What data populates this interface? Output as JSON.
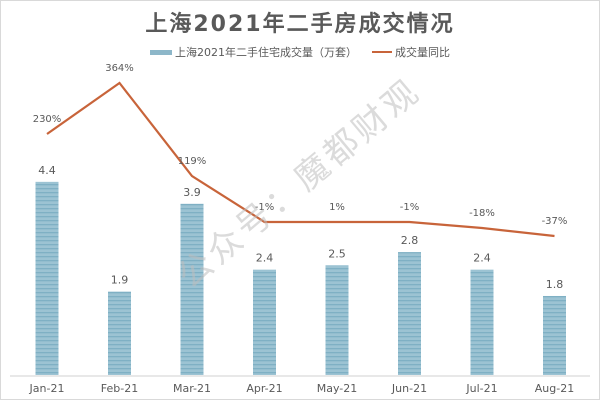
{
  "chart_data": {
    "type": "bar+line",
    "title": "上海2021年二手房成交情况",
    "categories": [
      "Jan-21",
      "Feb-21",
      "Mar-21",
      "Apr-21",
      "May-21",
      "Jun-21",
      "Jul-21",
      "Aug-21"
    ],
    "series": [
      {
        "name": "上海2021年二手住宅成交量（万套）",
        "type": "bar",
        "color": "#8db7c9",
        "values": [
          4.4,
          1.9,
          3.9,
          2.4,
          2.5,
          2.8,
          2.4,
          1.8
        ],
        "labels": [
          "4.4",
          "1.9",
          "3.9",
          "2.4",
          "2.5",
          "2.8",
          "2.4",
          "1.8"
        ]
      },
      {
        "name": "成交量同比",
        "type": "line",
        "color": "#c8643a",
        "values": [
          230,
          364,
          119,
          -1,
          1,
          -1,
          -18,
          -37
        ],
        "labels": [
          "230%",
          "364%",
          "119%",
          "-1%",
          "1%",
          "-1%",
          "-18%",
          "-37%"
        ]
      }
    ],
    "xlabel": "",
    "ylabel": "",
    "grid": false,
    "legend_position": "top"
  },
  "watermark": "公众号：魔都财观"
}
